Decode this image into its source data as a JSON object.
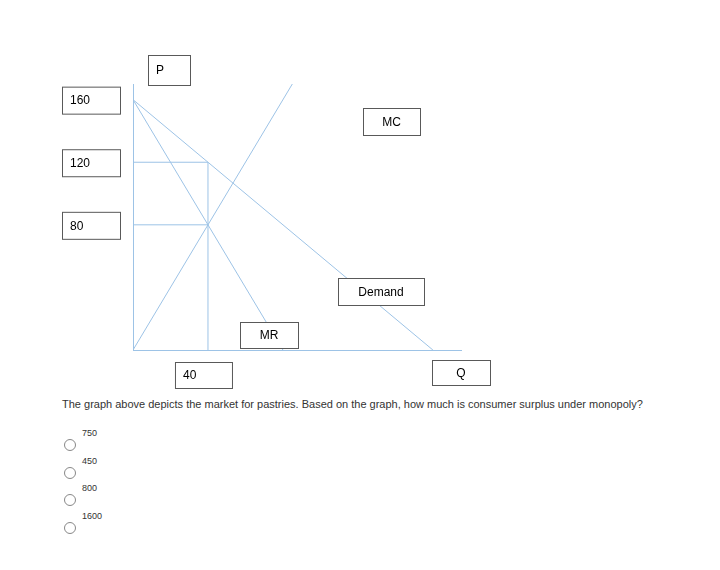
{
  "chart_data": {
    "type": "line",
    "x_label": "Q",
    "y_label": "P",
    "xlim": [
      0,
      175
    ],
    "ylim": [
      0,
      170
    ],
    "xticks": [
      40
    ],
    "yticks": [
      80,
      120,
      160
    ],
    "grid": false,
    "series": [
      {
        "name": "Demand",
        "color": "#9dc3e6",
        "x": [
          0,
          160
        ],
        "values": [
          160,
          0
        ]
      },
      {
        "name": "MR",
        "color": "#9dc3e6",
        "x": [
          0,
          80
        ],
        "values": [
          160,
          0
        ]
      },
      {
        "name": "MC",
        "color": "#9dc3e6",
        "x": [
          0,
          85
        ],
        "values": [
          0,
          170
        ]
      }
    ],
    "reference_lines": [
      {
        "x": [
          0,
          40
        ],
        "values": [
          120,
          120
        ]
      },
      {
        "x": [
          0,
          40
        ],
        "values": [
          80,
          80
        ]
      },
      {
        "x": [
          40,
          40
        ],
        "values": [
          0,
          120
        ]
      }
    ]
  },
  "question": {
    "text": "The graph above depicts the market for pastries. Based on the graph, how much is consumer surplus under monopoly?",
    "options": [
      "750",
      "450",
      "800",
      "1600"
    ]
  }
}
